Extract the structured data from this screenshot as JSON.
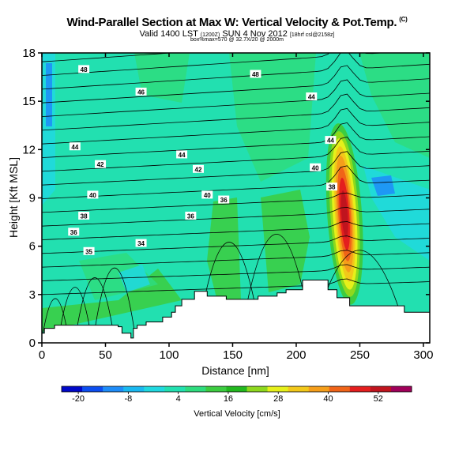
{
  "header": {
    "title": "Wind-Parallel Section at Max W: Vertical Velocity & Pot.Temp.",
    "title_mark": "(C)",
    "valid_main": "Valid 1400 LST",
    "valid_utc": "(1200Z)",
    "valid_date": "SUN 4 Nov 2012",
    "valid_model": "[18hrf csl@2158z]",
    "sub_line": "box%max=570 @ 32.7X/20 @ 2000m"
  },
  "colors": {
    "colorbar": [
      "#0008c8",
      "#0c4ef0",
      "#1e8cf8",
      "#1ab8f0",
      "#20d8e0",
      "#22e0b0",
      "#2edc7e",
      "#3ccc40",
      "#22b81e",
      "#8ed81e",
      "#e6f01a",
      "#f2c81a",
      "#f59e1a",
      "#f06418",
      "#e41e1e",
      "#c0141e",
      "#a0005a"
    ],
    "terrain": "#ffffff"
  },
  "chart_data": {
    "type": "heatmap",
    "title": "Wind-Parallel Section at Max W: Vertical Velocity & Pot.Temp.",
    "xlabel": "Distance [nm]",
    "ylabel": "Height [Kft MSL]",
    "xlim": [
      0,
      305
    ],
    "ylim": [
      0,
      18
    ],
    "x_ticks": [
      0,
      50,
      100,
      150,
      200,
      250,
      300
    ],
    "y_ticks": [
      0,
      3,
      6,
      9,
      12,
      15,
      18
    ],
    "colorbar": {
      "label": "Vertical Velocity [cm/s]",
      "range": [
        -24,
        60
      ],
      "tick_values": [
        -20,
        -8,
        4,
        16,
        28,
        40,
        52
      ],
      "tick_labels": [
        "-20",
        "-8",
        "4",
        "16",
        "28",
        "40",
        "52"
      ]
    },
    "terrain_profile": {
      "x": [
        0,
        2,
        2,
        10,
        10,
        60,
        60,
        63,
        63,
        70,
        70,
        72,
        72,
        75,
        75,
        82,
        82,
        95,
        95,
        102,
        102,
        105,
        105,
        110,
        110,
        120,
        120,
        130,
        130,
        145,
        145,
        170,
        170,
        185,
        185,
        192,
        192,
        205,
        205,
        225,
        225,
        232,
        232,
        242,
        242,
        285,
        285,
        305
      ],
      "y": [
        0.6,
        0.6,
        0.9,
        0.9,
        1.1,
        1.1,
        1.0,
        1.0,
        0.6,
        0.6,
        0.3,
        0.3,
        0.9,
        0.9,
        1.1,
        1.1,
        1.3,
        1.3,
        1.6,
        1.6,
        1.9,
        1.9,
        2.3,
        2.3,
        2.7,
        2.7,
        3.2,
        3.2,
        2.9,
        2.9,
        2.7,
        2.7,
        2.9,
        2.9,
        3.1,
        3.1,
        3.3,
        3.3,
        3.9,
        3.9,
        3.3,
        3.3,
        2.8,
        2.8,
        2.3,
        2.3,
        1.9,
        1.9
      ]
    },
    "theta_labels": [
      {
        "x": 33,
        "y": 17.0,
        "text": "48"
      },
      {
        "x": 78,
        "y": 15.6,
        "text": "46"
      },
      {
        "x": 168,
        "y": 16.7,
        "text": "48"
      },
      {
        "x": 212,
        "y": 15.3,
        "text": "44"
      },
      {
        "x": 26,
        "y": 12.2,
        "text": "44"
      },
      {
        "x": 110,
        "y": 11.7,
        "text": "44"
      },
      {
        "x": 227,
        "y": 12.6,
        "text": "44"
      },
      {
        "x": 46,
        "y": 11.1,
        "text": "42"
      },
      {
        "x": 123,
        "y": 10.8,
        "text": "42"
      },
      {
        "x": 215,
        "y": 10.9,
        "text": "40"
      },
      {
        "x": 40,
        "y": 9.2,
        "text": "40"
      },
      {
        "x": 130,
        "y": 9.2,
        "text": "40"
      },
      {
        "x": 143,
        "y": 8.9,
        "text": "36"
      },
      {
        "x": 228,
        "y": 9.7,
        "text": "38"
      },
      {
        "x": 33,
        "y": 7.9,
        "text": "38"
      },
      {
        "x": 117,
        "y": 7.9,
        "text": "36"
      },
      {
        "x": 25,
        "y": 6.9,
        "text": "36"
      },
      {
        "x": 78,
        "y": 6.2,
        "text": "34"
      },
      {
        "x": 37,
        "y": 5.7,
        "text": "35"
      }
    ],
    "w_max": {
      "x": 238,
      "y": 8.0,
      "value": 57
    }
  }
}
